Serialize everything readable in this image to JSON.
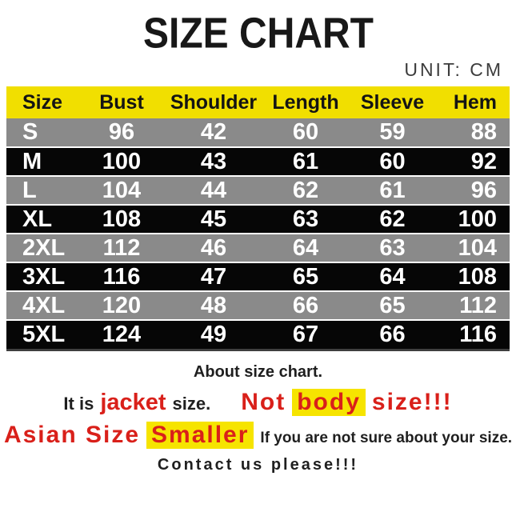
{
  "colors": {
    "header_yellow": "#f1df00",
    "highlight_yellow": "#f6e400",
    "row_black": "#060606",
    "row_gray": "#8a8a8a",
    "accent_red": "#d9201a",
    "unit_gray": "#3c3c3c"
  },
  "header": {
    "title": "SIZE CHART",
    "unit": "UNIT: CM"
  },
  "chart_data": {
    "type": "table",
    "title": "SIZE CHART",
    "unit": "CM",
    "columns": [
      "Size",
      "Bust",
      "Shoulder",
      "Length",
      "Sleeve",
      "Hem"
    ],
    "rows": [
      [
        "S",
        "96",
        "42",
        "60",
        "59",
        "88"
      ],
      [
        "M",
        "100",
        "43",
        "61",
        "60",
        "92"
      ],
      [
        "L",
        "104",
        "44",
        "62",
        "61",
        "96"
      ],
      [
        "XL",
        "108",
        "45",
        "63",
        "62",
        "100"
      ],
      [
        "2XL",
        "112",
        "46",
        "64",
        "63",
        "104"
      ],
      [
        "3XL",
        "116",
        "47",
        "65",
        "64",
        "108"
      ],
      [
        "4XL",
        "120",
        "48",
        "66",
        "65",
        "112"
      ],
      [
        "5XL",
        "124",
        "49",
        "67",
        "66",
        "116"
      ]
    ],
    "layout_hints": {
      "header_bg": "yellow",
      "row_stripes": [
        "black",
        "gray"
      ],
      "row_text_color": "white"
    }
  },
  "notes": {
    "about": "About size chart.",
    "line_jacket": {
      "prefix": "It is",
      "jacket": "jacket",
      "mid": "size.",
      "not": "Not",
      "body": "body",
      "suffix": "size!!!"
    },
    "line_asian": {
      "asian": "Asian Size",
      "smaller": "Smaller",
      "rest": "If you are not sure about your size."
    },
    "contact": "Contact us please!!!"
  }
}
